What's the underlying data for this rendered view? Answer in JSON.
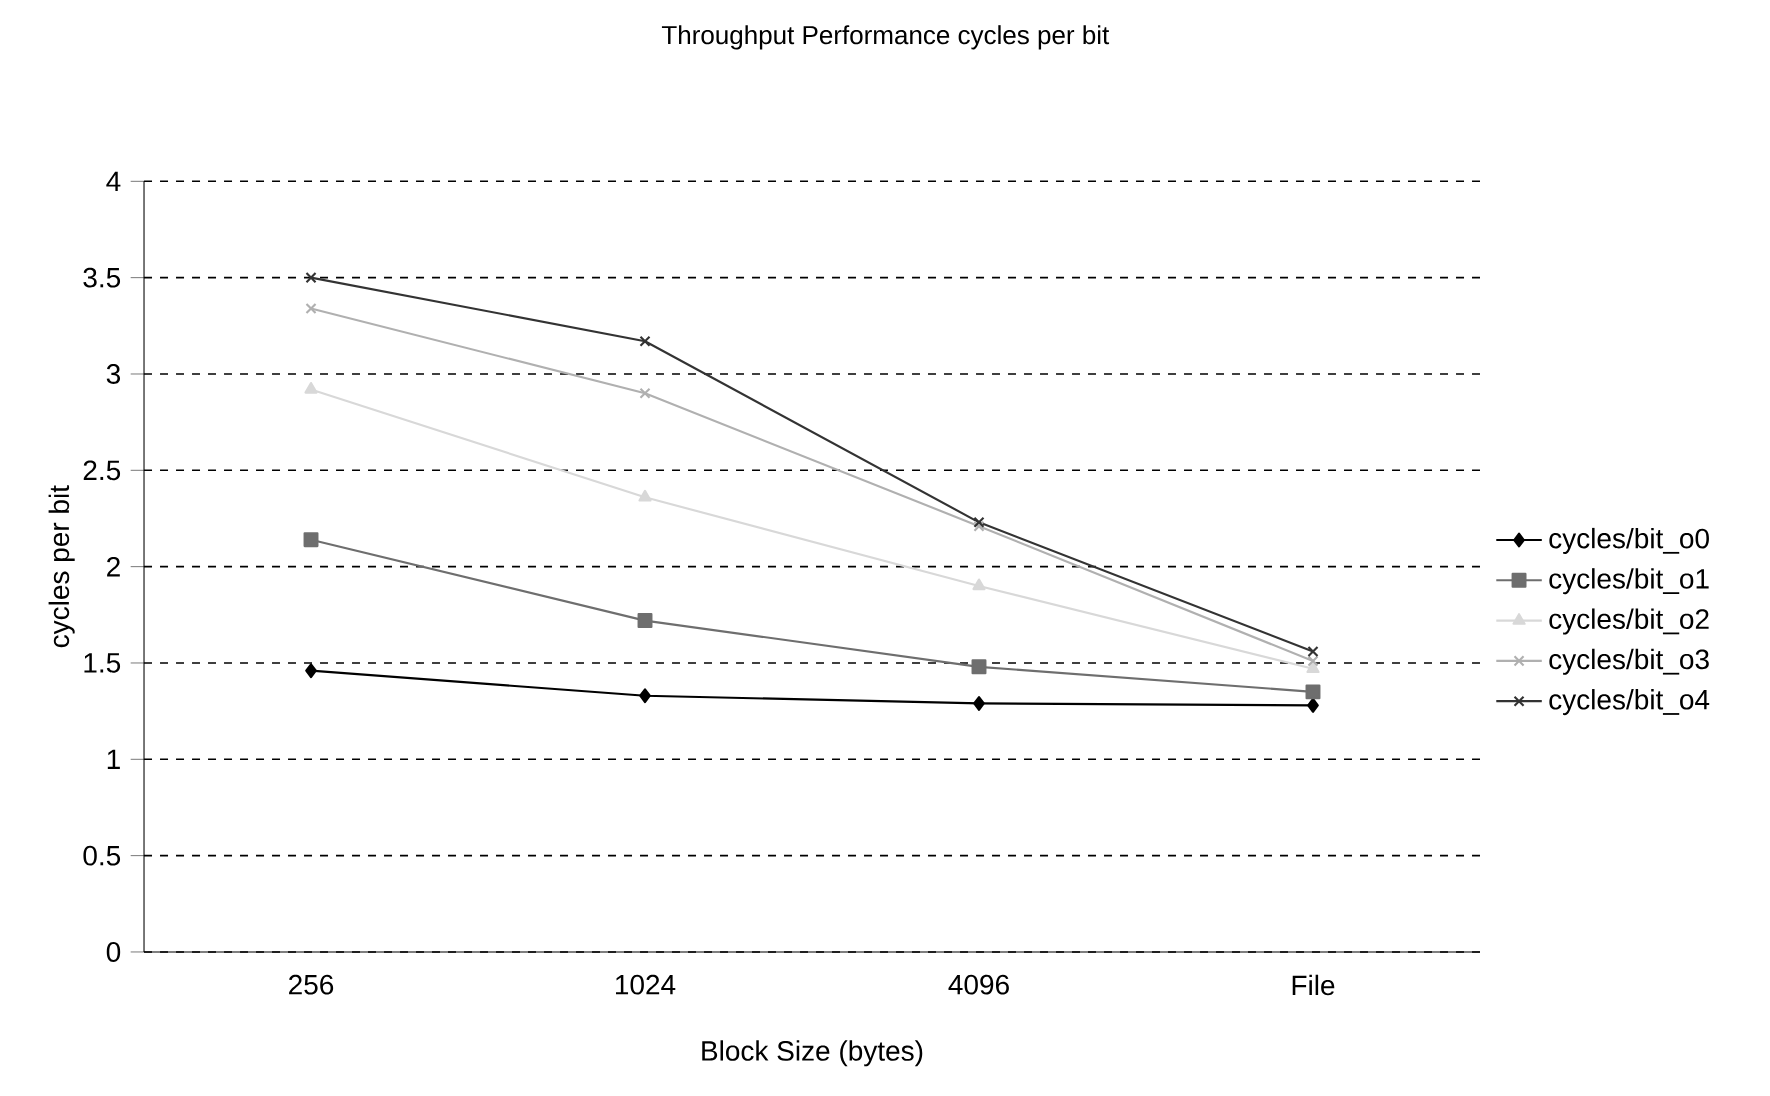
{
  "chart_data": {
    "type": "line",
    "title": "Throughput Performance cycles per bit",
    "xlabel": "Block Size (bytes)",
    "ylabel": "cycles per bit",
    "categories": [
      "256",
      "1024",
      "4096",
      "File"
    ],
    "series": [
      {
        "name": "cycles/bit_o0",
        "color": "#000000",
        "marker": "diamond",
        "values": [
          1.46,
          1.33,
          1.29,
          1.28
        ]
      },
      {
        "name": "cycles/bit_o1",
        "color": "#6e6e6e",
        "marker": "square",
        "values": [
          2.14,
          1.72,
          1.48,
          1.35
        ]
      },
      {
        "name": "cycles/bit_o2",
        "color": "#d8d8d8",
        "marker": "triangle",
        "values": [
          2.92,
          2.36,
          1.9,
          1.47
        ]
      },
      {
        "name": "cycles/bit_o3",
        "color": "#b0b0b0",
        "marker": "cross",
        "values": [
          3.34,
          2.9,
          2.21,
          1.51
        ]
      },
      {
        "name": "cycles/bit_o4",
        "color": "#333333",
        "marker": "cross",
        "values": [
          3.5,
          3.17,
          2.23,
          1.56
        ]
      }
    ],
    "ylim": [
      0,
      4
    ],
    "yticks": [
      0,
      0.5,
      1,
      1.5,
      2,
      2.5,
      3,
      3.5,
      4
    ],
    "grid": "y",
    "legend": "right",
    "line_style": "solid"
  }
}
